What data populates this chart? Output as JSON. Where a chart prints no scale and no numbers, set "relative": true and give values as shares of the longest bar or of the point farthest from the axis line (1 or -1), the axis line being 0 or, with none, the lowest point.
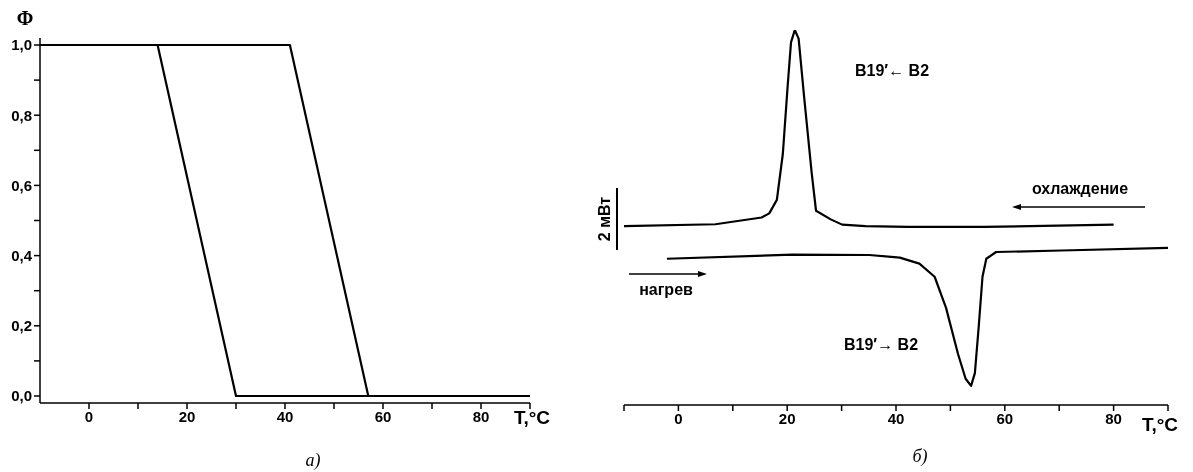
{
  "chart_data": [
    {
      "type": "line",
      "ylabel": "Φ",
      "xlabel": "T,°C",
      "annotations": [
        "а)"
      ],
      "xlim": [
        -10,
        90
      ],
      "xticks": [
        0,
        {
          "value": 10,
          "label": null
        },
        20,
        {
          "value": 30,
          "label": null
        },
        40,
        {
          "value": 50,
          "label": null
        },
        60,
        {
          "value": 70,
          "label": null
        },
        80,
        {
          "value": 90,
          "label": null
        }
      ],
      "ylim": [
        -0.02,
        1.02
      ],
      "yticks": [
        {
          "value": 0,
          "label": "0,0"
        },
        {
          "value": 0.1,
          "label": null
        },
        {
          "value": 0.2,
          "label": "0,2"
        },
        {
          "value": 0.3,
          "label": null
        },
        {
          "value": 0.4,
          "label": "0,4"
        },
        {
          "value": 0.5,
          "label": null
        },
        {
          "value": 0.6,
          "label": "0,6"
        },
        {
          "value": 0.7,
          "label": null
        },
        {
          "value": 0.8,
          "label": "0,8"
        },
        {
          "value": 0.9,
          "label": null
        },
        {
          "value": 1,
          "label": "1,0"
        }
      ],
      "series": [
        {
          "color": "#000000",
          "x": [
            -10,
            14,
            30,
            90
          ],
          "values": [
            1,
            1,
            0,
            0
          ]
        },
        {
          "color": "#000000",
          "x": [
            -10,
            41,
            57,
            90
          ],
          "values": [
            1,
            1,
            0,
            0
          ]
        }
      ]
    },
    {
      "type": "line",
      "relative": true,
      "tick_labels": "x",
      "xlabel": "T,°C",
      "annotations": [
        "B19′← B2",
        "B19′→ B2",
        "охлаждение",
        "нагрев",
        "2 мВт",
        "б)"
      ],
      "xlim": [
        -10,
        90
      ],
      "xticks": [
        {
          "value": -10,
          "label": null
        },
        0,
        {
          "value": 10,
          "label": null
        },
        20,
        {
          "value": 30,
          "label": null
        },
        40,
        {
          "value": 50,
          "label": null
        },
        60,
        {
          "value": 70,
          "label": null
        },
        80,
        {
          "value": 90,
          "label": null
        }
      ],
      "series": [
        {
          "color": "#000000",
          "x": [
            -10,
            6.8,
            15.3,
            16.7,
            18.1,
            19.2,
            20.1,
            20.7,
            21.4,
            22.1,
            23.1,
            24.5,
            25.3,
            28,
            30.1,
            34.4,
            42.1,
            56.3,
            80
          ],
          "values": [
            0.477,
            0.482,
            0.5,
            0.511,
            0.547,
            0.67,
            0.854,
            0.967,
            1,
            0.977,
            0.823,
            0.619,
            0.518,
            0.495,
            0.481,
            0.477,
            0.475,
            0.475,
            0.481
          ]
        },
        {
          "color": "#000000",
          "x": [
            -2.1,
            20.9,
            35.1,
            40.7,
            44.3,
            47.1,
            49.2,
            51.4,
            52.8,
            53.8,
            54.5,
            55.2,
            55.9,
            56.6,
            58.4,
            70.4,
            90
          ],
          "values": [
            0.39,
            0.401,
            0.4,
            0.393,
            0.377,
            0.342,
            0.259,
            0.136,
            0.07,
            0.051,
            0.085,
            0.208,
            0.342,
            0.39,
            0.408,
            0.412,
            0.419
          ]
        }
      ]
    }
  ]
}
